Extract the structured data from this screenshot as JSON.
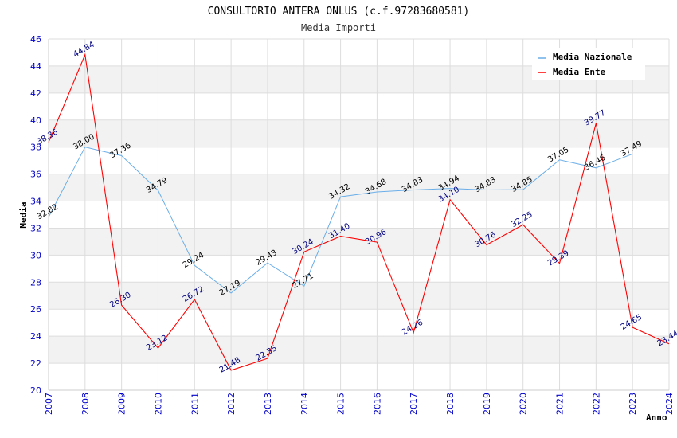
{
  "chart_data": {
    "type": "line",
    "title": "CONSULTORIO ANTERA ONLUS (c.f.97283680581)",
    "subtitle": "Media Importi",
    "xlabel": "Anno",
    "ylabel": "Media",
    "x": [
      "2007",
      "2008",
      "2009",
      "2010",
      "2011",
      "2012",
      "2013",
      "2014",
      "2015",
      "2016",
      "2017",
      "2018",
      "2019",
      "2020",
      "2021",
      "2022",
      "2023",
      "2024"
    ],
    "ylim": [
      20,
      46
    ],
    "yticks": [
      20,
      22,
      24,
      26,
      28,
      30,
      32,
      34,
      36,
      38,
      40,
      42,
      44,
      46
    ],
    "grid": true,
    "legend_position": "top-right",
    "series": [
      {
        "name": "Media Nazionale",
        "color": "#6aaee8",
        "label_color": "#000000",
        "values": [
          32.82,
          38.0,
          37.36,
          34.79,
          29.24,
          27.19,
          29.43,
          27.71,
          34.32,
          34.68,
          34.83,
          34.94,
          34.83,
          34.85,
          37.05,
          36.46,
          37.49,
          null
        ],
        "labels": [
          "32.82",
          "38.00",
          "37.36",
          "34.79",
          "29.24",
          "27.19",
          "29.43",
          "27.71",
          "34.32",
          "34.68",
          "34.83",
          "34.94",
          "34.83",
          "34.85",
          "37.05",
          "36.46",
          "37.49",
          ""
        ]
      },
      {
        "name": "Media Ente",
        "color": "#ff0000",
        "label_color": "#000080",
        "values": [
          38.36,
          44.84,
          26.3,
          23.12,
          26.72,
          21.48,
          22.35,
          30.24,
          31.4,
          30.96,
          24.26,
          34.1,
          30.76,
          32.25,
          29.39,
          39.77,
          24.65,
          23.44
        ],
        "labels": [
          "38.36",
          "44.84",
          "26.30",
          "23.12",
          "26.72",
          "21.48",
          "22.35",
          "30.24",
          "31.40",
          "30.96",
          "24.26",
          "34.10",
          "30.76",
          "32.25",
          "29.39",
          "39.77",
          "24.65",
          "23.44"
        ]
      }
    ]
  }
}
